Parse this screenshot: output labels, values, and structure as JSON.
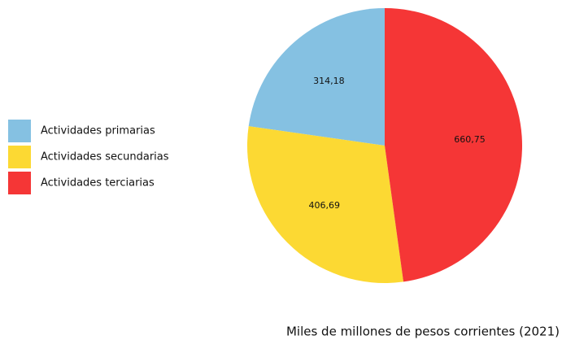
{
  "chart_data": {
    "type": "pie",
    "categories": [
      "Actividades primarias",
      "Actividades secundarias",
      "Actividades terciarias"
    ],
    "values": [
      314.18,
      406.69,
      660.75
    ],
    "value_labels": [
      "314,18",
      "406,69",
      "660,75"
    ],
    "colors": [
      "#85c1e2",
      "#fcd933",
      "#f53636"
    ],
    "caption": "Miles de millones de pesos corrientes (2021)"
  }
}
